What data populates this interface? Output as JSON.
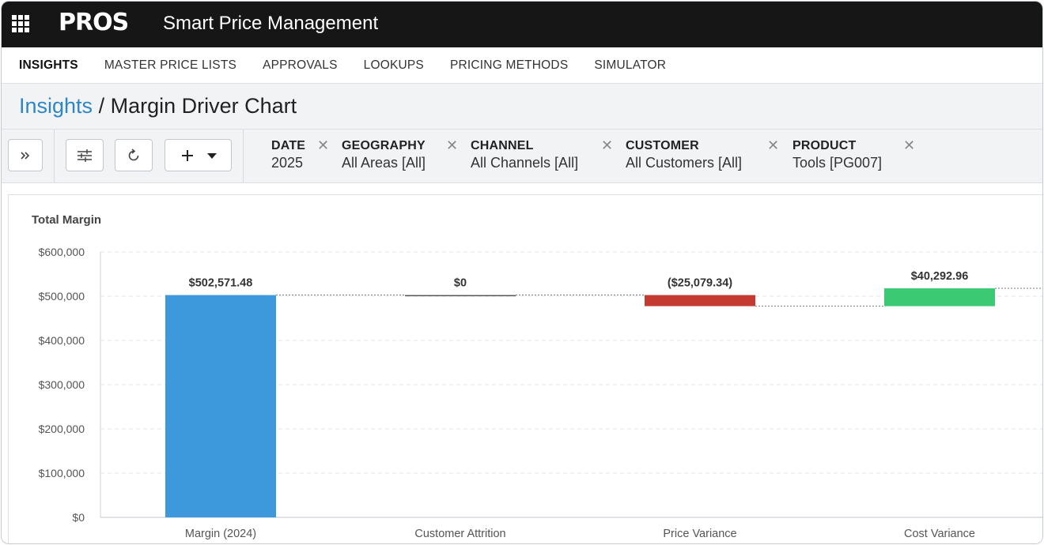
{
  "app": {
    "logo": "PROS",
    "title": "Smart Price Management"
  },
  "nav": {
    "items": [
      "INSIGHTS",
      "MASTER PRICE LISTS",
      "APPROVALS",
      "LOOKUPS",
      "PRICING METHODS",
      "SIMULATOR"
    ],
    "active": "INSIGHTS"
  },
  "breadcrumb": {
    "parent": "Insights",
    "separator": " / ",
    "current": "Margin Driver Chart"
  },
  "toolbar": {
    "expand_icon": "double-chevron-right-icon",
    "settings_icon": "sliders-icon",
    "refresh_icon": "refresh-icon",
    "add_icon": "plus-icon",
    "dropdown_icon": "caret-down-icon"
  },
  "filters": [
    {
      "label": "DATE",
      "value": "2025"
    },
    {
      "label": "GEOGRAPHY",
      "value": "All Areas [All]"
    },
    {
      "label": "CHANNEL",
      "value": "All Channels [All]"
    },
    {
      "label": "CUSTOMER",
      "value": "All Customers [All]"
    },
    {
      "label": "PRODUCT",
      "value": "Tools [PG007]"
    }
  ],
  "chart_data": {
    "type": "bar",
    "subtype": "waterfall",
    "title": "Total Margin",
    "categories": [
      "Margin (2024)",
      "Customer Attrition",
      "Price Variance",
      "Cost Variance"
    ],
    "values": [
      502571.48,
      0,
      -25079.34,
      40292.96
    ],
    "data_labels": [
      "$502,571.48",
      "$0",
      "($25,079.34)",
      "$40,292.96"
    ],
    "colors": [
      "#3d99dc",
      "#555555",
      "#c43a30",
      "#3cc974"
    ],
    "ylim": [
      0,
      600000
    ],
    "yticks": [
      "$0",
      "$100,000",
      "$200,000",
      "$300,000",
      "$400,000",
      "$500,000",
      "$600,000"
    ],
    "grid": true,
    "connector_lines": true
  }
}
